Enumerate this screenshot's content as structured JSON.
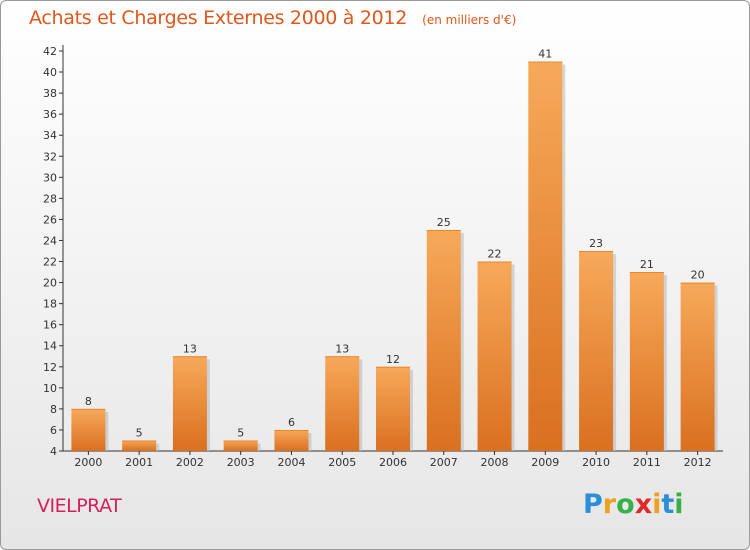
{
  "title": "Achats et Charges Externes 2000 à 2012",
  "unit": "(en milliers d'€)",
  "commune": "VIELPRAT",
  "brand": {
    "letters": [
      "P",
      "r",
      "o",
      "x",
      "i",
      "t",
      "i"
    ],
    "colors": [
      "#2a8ed8",
      "#f0a020",
      "#38b04a",
      "#e02a2a",
      "#f0a020",
      "#2a8ed8",
      "#38b04a"
    ]
  },
  "colors": {
    "bar_light": "#f7a95a",
    "bar_dark": "#d9701f",
    "title": "#e0571a",
    "commune": "#d4205f"
  },
  "chart_data": {
    "type": "bar",
    "title": "Achats et Charges Externes 2000 à 2012",
    "subtitle": "(en milliers d'€)",
    "categories": [
      "2000",
      "2001",
      "2002",
      "2003",
      "2004",
      "2005",
      "2006",
      "2007",
      "2008",
      "2009",
      "2010",
      "2011",
      "2012"
    ],
    "values": [
      8,
      5,
      13,
      5,
      6,
      13,
      12,
      25,
      22,
      41,
      23,
      21,
      20
    ],
    "ylim": [
      4,
      42
    ],
    "yticks": [
      4,
      6,
      8,
      10,
      12,
      14,
      16,
      18,
      20,
      22,
      24,
      26,
      28,
      30,
      32,
      34,
      36,
      38,
      40,
      42
    ],
    "grid": false,
    "data_labels": true
  }
}
